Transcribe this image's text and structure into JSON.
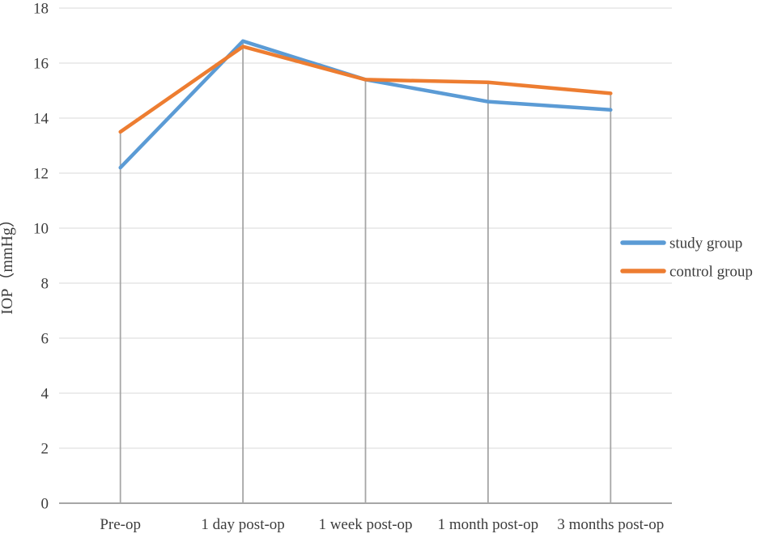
{
  "chart_data": {
    "type": "line",
    "title": "",
    "ylabel": "IOP（mmHg）",
    "xlabel": "",
    "categories": [
      "Pre-op",
      "1 day post-op",
      "1 week post-op",
      "1 month post-op",
      "3 months post-op"
    ],
    "series": [
      {
        "name": "study group",
        "color": "#5B9BD5",
        "values": [
          12.2,
          16.8,
          15.4,
          14.6,
          14.3
        ]
      },
      {
        "name": "control group",
        "color": "#ED7D31",
        "values": [
          13.5,
          16.6,
          15.4,
          15.3,
          14.9
        ]
      }
    ],
    "ylim": [
      0,
      18
    ],
    "yticks": [
      0,
      2,
      4,
      6,
      8,
      10,
      12,
      14,
      16,
      18
    ],
    "grid": true,
    "drop_lines": true,
    "legend_position": "right",
    "style": {
      "gridline_color": "#D9D9D9",
      "axis_line_color": "#A6A6A6",
      "drop_line_color": "#A6A6A6",
      "text_color": "#3d3d3d",
      "background": "#ffffff"
    }
  }
}
